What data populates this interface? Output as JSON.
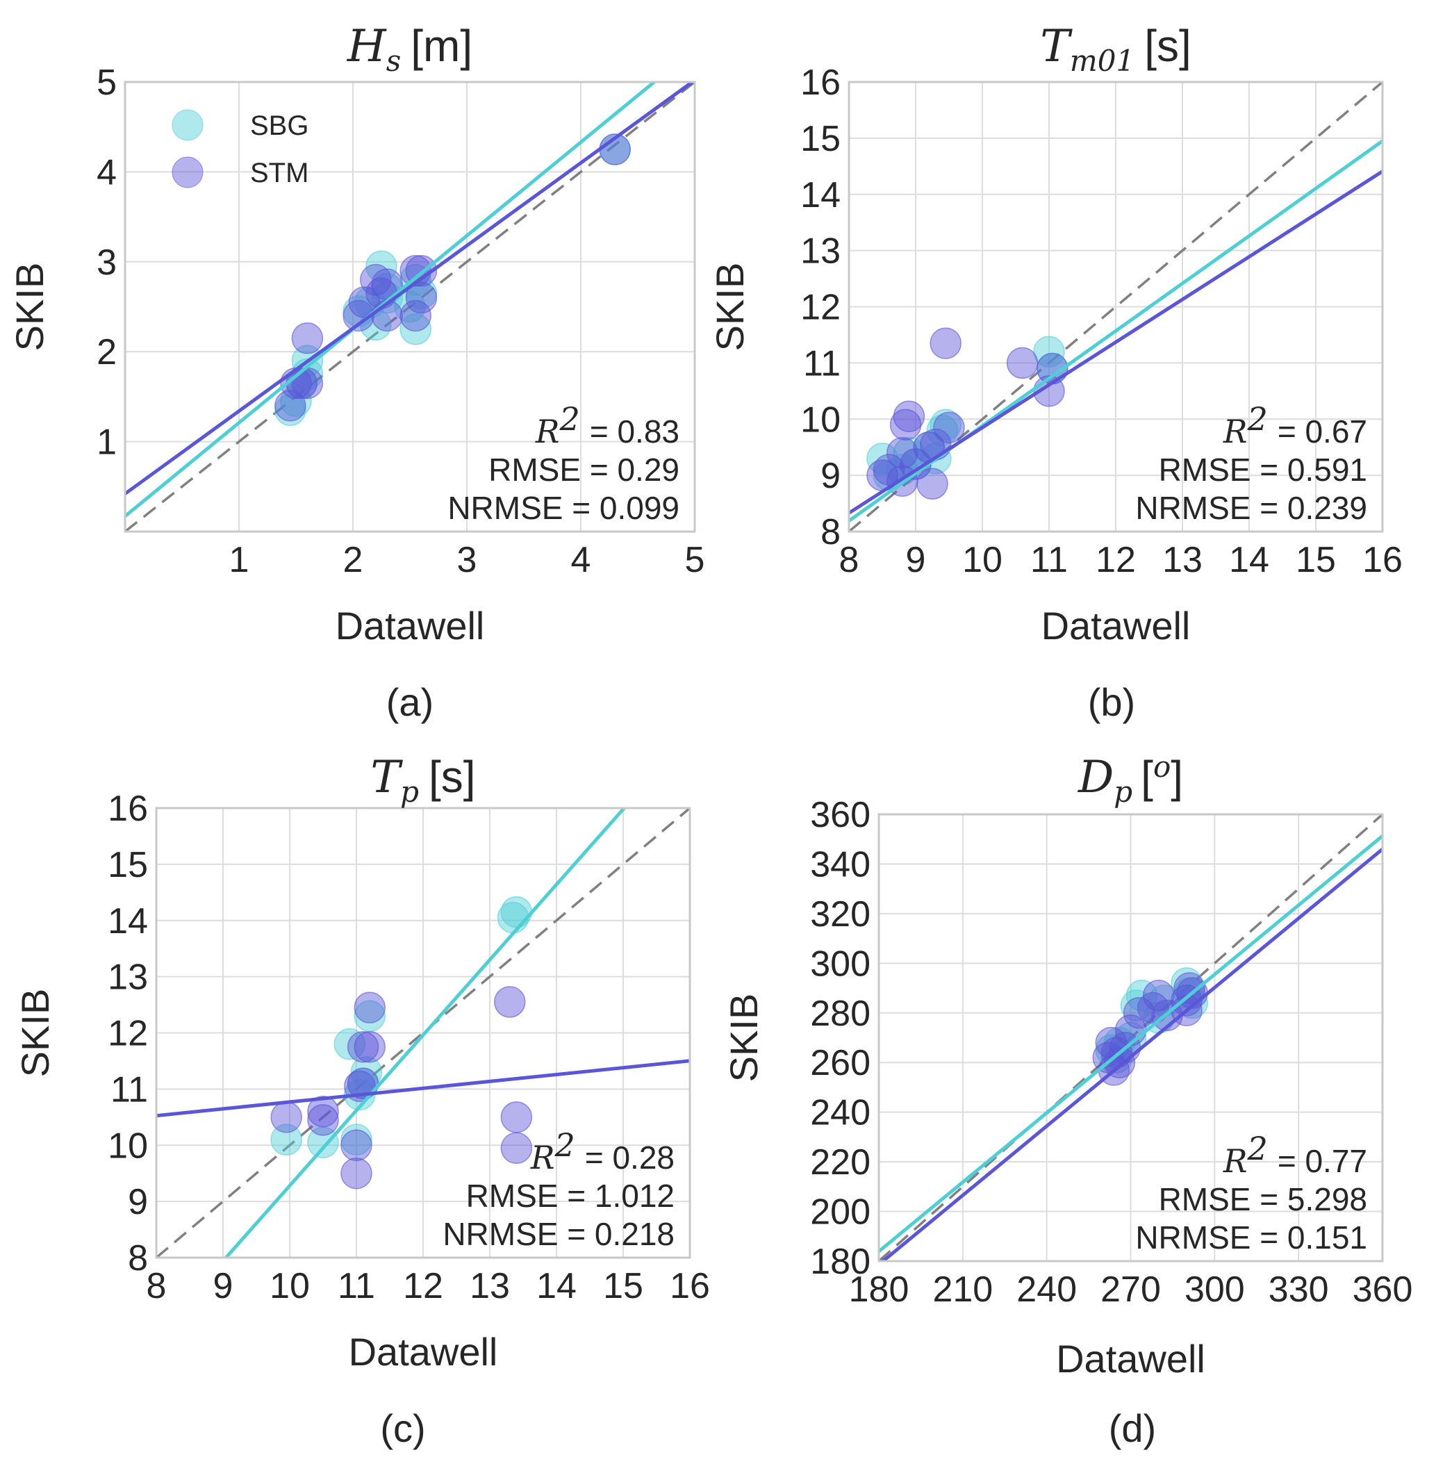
{
  "colors": {
    "sbg": "#4ecfd6",
    "stm": "#5b55d8",
    "identity": "#808080",
    "grid": "#dcdcdc",
    "frame": "#c8c8c8"
  },
  "legend": {
    "sbg": "SBG",
    "stm": "STM"
  },
  "chart_data": [
    {
      "type": "scatter",
      "panel_label": "(a)",
      "title_symbol": "H",
      "title_sub": "s",
      "title_sup": "",
      "title_unit": "[m]",
      "xlabel": "Datawell",
      "ylabel": "SKIB",
      "xlim": [
        0,
        5
      ],
      "ylim": [
        0,
        5
      ],
      "xticks": [
        "1",
        "2",
        "3",
        "4",
        "5"
      ],
      "xtick_values": [
        1,
        2,
        3,
        4,
        5
      ],
      "yticks": [
        "1",
        "2",
        "3",
        "4",
        "5"
      ],
      "ytick_values": [
        1,
        2,
        3,
        4,
        5
      ],
      "stats": {
        "r2_label": "R",
        "r2_value": "= 0.83",
        "rmse": "RMSE  = 0.29",
        "nrmse": "NRMSE = 0.099"
      },
      "legend_shown": true,
      "series": [
        {
          "name": "SBG",
          "fit": [
            0.17,
            1.04
          ],
          "points": [
            [
              1.45,
              1.35
            ],
            [
              1.5,
              1.45
            ],
            [
              1.55,
              1.65
            ],
            [
              1.6,
              1.9
            ],
            [
              1.6,
              1.75
            ],
            [
              2.05,
              2.45
            ],
            [
              2.15,
              2.55
            ],
            [
              2.2,
              2.3
            ],
            [
              2.25,
              2.95
            ],
            [
              2.3,
              2.6
            ],
            [
              2.3,
              2.7
            ],
            [
              2.5,
              2.5
            ],
            [
              2.55,
              2.25
            ],
            [
              2.55,
              2.8
            ],
            [
              2.6,
              2.65
            ],
            [
              4.3,
              4.25
            ]
          ]
        },
        {
          "name": "STM",
          "fit": [
            0.42,
            0.92
          ],
          "points": [
            [
              1.45,
              1.4
            ],
            [
              1.5,
              1.65
            ],
            [
              1.55,
              1.65
            ],
            [
              1.6,
              2.15
            ],
            [
              1.6,
              1.65
            ],
            [
              2.05,
              2.4
            ],
            [
              2.1,
              2.55
            ],
            [
              2.2,
              2.8
            ],
            [
              2.25,
              2.65
            ],
            [
              2.3,
              2.4
            ],
            [
              2.3,
              2.75
            ],
            [
              2.55,
              2.9
            ],
            [
              2.55,
              2.4
            ],
            [
              2.6,
              2.9
            ],
            [
              2.6,
              2.6
            ],
            [
              4.3,
              4.25
            ]
          ]
        }
      ]
    },
    {
      "type": "scatter",
      "panel_label": "(b)",
      "title_symbol": "T",
      "title_sub": "m01",
      "title_sup": "",
      "title_unit": "[s]",
      "xlabel": "Datawell",
      "ylabel": "SKIB",
      "xlim": [
        8,
        16
      ],
      "ylim": [
        8,
        16
      ],
      "xticks": [
        "8",
        "9",
        "10",
        "11",
        "12",
        "13",
        "14",
        "15",
        "16"
      ],
      "xtick_values": [
        8,
        9,
        10,
        11,
        12,
        13,
        14,
        15,
        16
      ],
      "yticks": [
        "8",
        "9",
        "10",
        "11",
        "12",
        "13",
        "14",
        "15",
        "16"
      ],
      "ytick_values": [
        8,
        9,
        10,
        11,
        12,
        13,
        14,
        15,
        16
      ],
      "stats": {
        "r2_label": "R",
        "r2_value": "= 0.67",
        "rmse": "RMSE  = 0.591",
        "nrmse": "NRMSE = 0.239"
      },
      "legend_shown": false,
      "series": [
        {
          "name": "SBG",
          "fit": [
            1.43,
            0.845
          ],
          "points": [
            [
              8.5,
              9.3
            ],
            [
              8.6,
              9.0
            ],
            [
              8.8,
              9.1
            ],
            [
              8.9,
              9.4
            ],
            [
              9.0,
              9.2
            ],
            [
              9.2,
              9.5
            ],
            [
              9.3,
              9.3
            ],
            [
              9.4,
              9.8
            ],
            [
              9.45,
              9.9
            ],
            [
              11.0,
              11.2
            ],
            [
              11.05,
              10.9
            ]
          ]
        },
        {
          "name": "STM",
          "fit": [
            2.25,
            0.76
          ],
          "points": [
            [
              8.5,
              9.0
            ],
            [
              8.6,
              9.1
            ],
            [
              8.8,
              8.9
            ],
            [
              8.8,
              9.4
            ],
            [
              8.85,
              9.9
            ],
            [
              8.9,
              10.05
            ],
            [
              9.0,
              9.2
            ],
            [
              9.2,
              9.5
            ],
            [
              9.25,
              8.85
            ],
            [
              9.3,
              9.55
            ],
            [
              9.45,
              11.35
            ],
            [
              9.5,
              9.85
            ],
            [
              10.6,
              11.0
            ],
            [
              11.0,
              10.5
            ],
            [
              11.05,
              10.9
            ]
          ]
        }
      ]
    },
    {
      "type": "scatter",
      "panel_label": "(c)",
      "title_symbol": "T",
      "title_sub": "p",
      "title_sup": "",
      "title_unit": "[s]",
      "xlabel": "Datawell",
      "ylabel": "SKIB",
      "xlim": [
        8,
        16
      ],
      "ylim": [
        8,
        16
      ],
      "xticks": [
        "8",
        "9",
        "10",
        "11",
        "12",
        "13",
        "14",
        "15",
        "16"
      ],
      "xtick_values": [
        8,
        9,
        10,
        11,
        12,
        13,
        14,
        15,
        16
      ],
      "yticks": [
        "8",
        "9",
        "10",
        "11",
        "12",
        "13",
        "14",
        "15",
        "16"
      ],
      "ytick_values": [
        8,
        9,
        10,
        11,
        12,
        13,
        14,
        15,
        16
      ],
      "stats": {
        "r2_label": "R",
        "r2_value": "= 0.28",
        "rmse": "RMSE  = 1.012",
        "nrmse": "NRMSE = 0.218"
      },
      "legend_shown": false,
      "series": [
        {
          "name": "SBG",
          "fit": [
            -4.12,
            1.34
          ],
          "points": [
            [
              9.95,
              10.1
            ],
            [
              10.5,
              10.05
            ],
            [
              10.9,
              11.8
            ],
            [
              11.0,
              10.1
            ],
            [
              11.05,
              10.9
            ],
            [
              11.1,
              11.1
            ],
            [
              11.15,
              11.3
            ],
            [
              11.2,
              12.3
            ],
            [
              13.35,
              14.05
            ],
            [
              13.4,
              14.15
            ]
          ]
        },
        {
          "name": "STM",
          "fit": [
            9.55,
            0.122
          ],
          "points": [
            [
              9.95,
              10.5
            ],
            [
              10.5,
              10.45
            ],
            [
              10.5,
              10.6
            ],
            [
              11.0,
              10.0
            ],
            [
              11.0,
              9.5
            ],
            [
              11.05,
              11.05
            ],
            [
              11.1,
              11.1
            ],
            [
              11.1,
              11.75
            ],
            [
              11.2,
              12.45
            ],
            [
              11.2,
              11.75
            ],
            [
              13.3,
              12.55
            ],
            [
              13.4,
              10.5
            ],
            [
              13.4,
              9.95
            ]
          ]
        }
      ]
    },
    {
      "type": "scatter",
      "panel_label": "(d)",
      "title_symbol": "D",
      "title_sub": "p",
      "title_sup": "o",
      "title_unit": "[ ]",
      "xlabel": "Datawell",
      "ylabel": "SKIB",
      "xlim": [
        180,
        360
      ],
      "ylim": [
        180,
        360
      ],
      "xticks": [
        "180",
        "210",
        "240",
        "270",
        "300",
        "330",
        "360"
      ],
      "xtick_values": [
        180,
        210,
        240,
        270,
        300,
        330,
        360
      ],
      "yticks": [
        "180",
        "200",
        "220",
        "240",
        "260",
        "280",
        "300",
        "320",
        "340",
        "360"
      ],
      "ytick_values": [
        180,
        200,
        220,
        240,
        260,
        280,
        300,
        320,
        340,
        360
      ],
      "stats": {
        "r2_label": "R",
        "r2_value": "= 0.77",
        "rmse": "RMSE  = 5.298",
        "nrmse": "NRMSE = 0.151"
      },
      "legend_shown": false,
      "series": [
        {
          "name": "SBG",
          "fit": [
            16.5,
            0.93
          ],
          "points": [
            [
              263,
              265
            ],
            [
              265,
              262
            ],
            [
              266,
              268
            ],
            [
              270,
              270
            ],
            [
              272,
              283
            ],
            [
              274,
              287
            ],
            [
              280,
              278
            ],
            [
              282,
              285
            ],
            [
              290,
              292
            ],
            [
              291,
              288
            ],
            [
              292,
              284
            ]
          ]
        },
        {
          "name": "STM",
          "fit": [
            11.2,
            0.93
          ],
          "points": [
            [
              262,
              262
            ],
            [
              263,
              268
            ],
            [
              264,
              257
            ],
            [
              265,
              264
            ],
            [
              266,
              260
            ],
            [
              268,
              266
            ],
            [
              270,
              273
            ],
            [
              273,
              280
            ],
            [
              278,
              282
            ],
            [
              280,
              287
            ],
            [
              283,
              279
            ],
            [
              290,
              281
            ],
            [
              290,
              285
            ],
            [
              291,
              290
            ],
            [
              292,
              288
            ]
          ]
        }
      ]
    }
  ]
}
